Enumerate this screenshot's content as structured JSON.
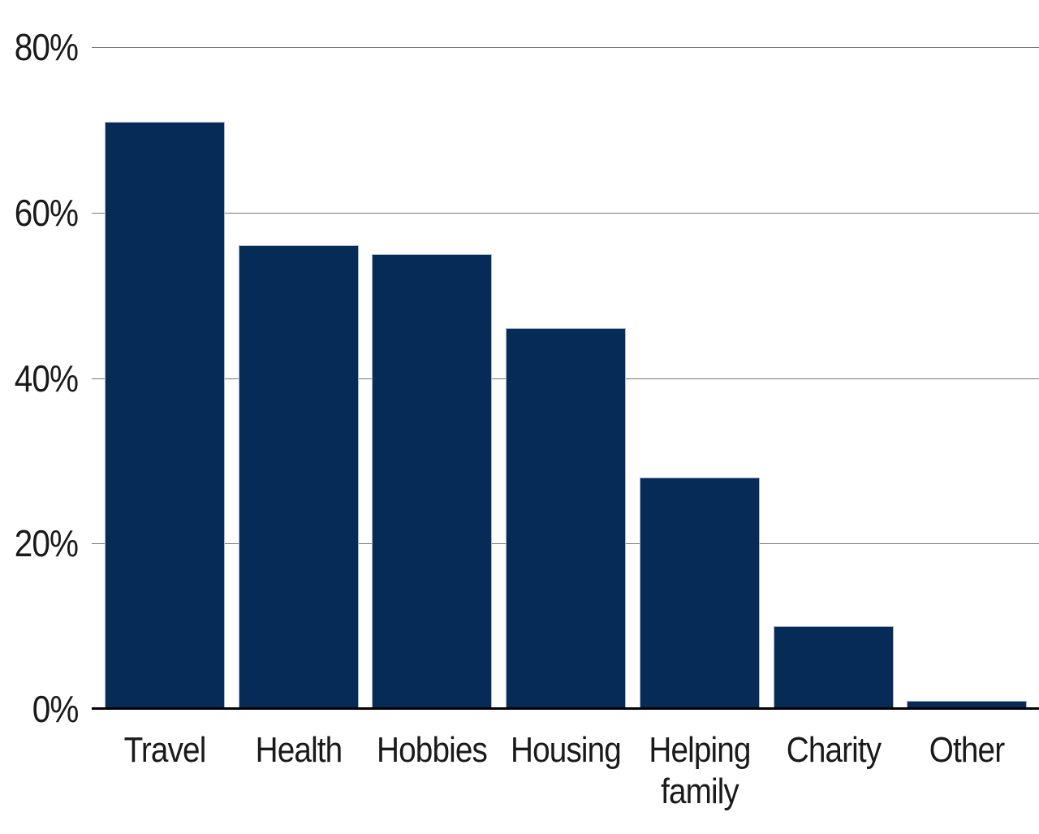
{
  "chart_data": {
    "type": "bar",
    "title": "",
    "xlabel": "",
    "ylabel": "",
    "categories": [
      "Travel",
      "Health",
      "Hobbies",
      "Housing",
      "Helping family",
      "Charity",
      "Other"
    ],
    "values": [
      71,
      56,
      55,
      46,
      28,
      10,
      1
    ],
    "value_unit": "%",
    "ylim": [
      0,
      80
    ],
    "yticks": [
      0,
      20,
      40,
      60,
      80
    ],
    "ytick_labels": [
      "0%",
      "20%",
      "40%",
      "60%",
      "80%"
    ],
    "grid": "horizontal",
    "legend_position": "none",
    "colors": {
      "bar": "#072b57",
      "bar_edge": "#a9b8cc",
      "gridline": "#7a7a7a",
      "axis": "#000000",
      "text": "#1a1a1a",
      "background": "#ffffff"
    }
  }
}
